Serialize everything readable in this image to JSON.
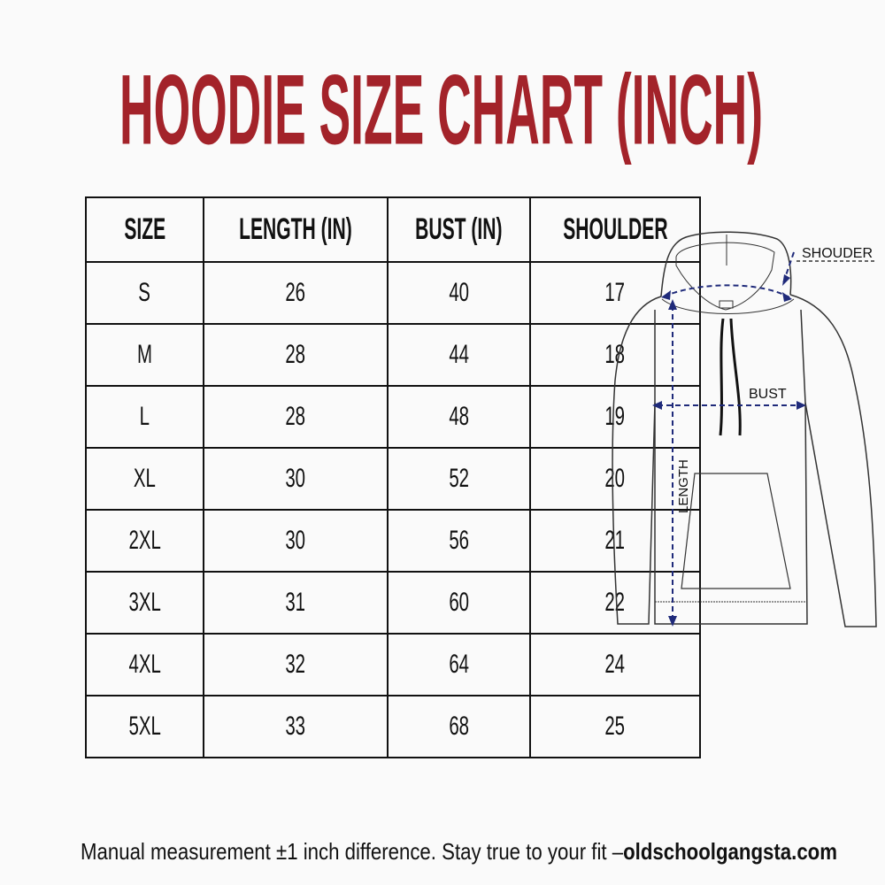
{
  "title": "HOODIE SIZE CHART (INCH)",
  "colors": {
    "title": "#a3232a",
    "measure_lines": "#1f2a7a"
  },
  "table": {
    "headers": [
      "SIZE",
      "LENGTH (IN)",
      "BUST (IN)",
      "SHOULDER"
    ],
    "rows": [
      [
        "S",
        "26",
        "40",
        "17"
      ],
      [
        "M",
        "28",
        "44",
        "18"
      ],
      [
        "L",
        "28",
        "48",
        "19"
      ],
      [
        "XL",
        "30",
        "52",
        "20"
      ],
      [
        "2XL",
        "30",
        "56",
        "21"
      ],
      [
        "3XL",
        "31",
        "60",
        "22"
      ],
      [
        "4XL",
        "32",
        "64",
        "24"
      ],
      [
        "5XL",
        "33",
        "68",
        "25"
      ]
    ]
  },
  "diagram": {
    "shoulder_label": "SHOUDER",
    "bust_label": "BUST",
    "length_label": "LENGTH"
  },
  "footer": {
    "note": "Manual measurement ±1 inch difference. Stay true to your fit –",
    "site": "oldschoolgangsta.com"
  }
}
